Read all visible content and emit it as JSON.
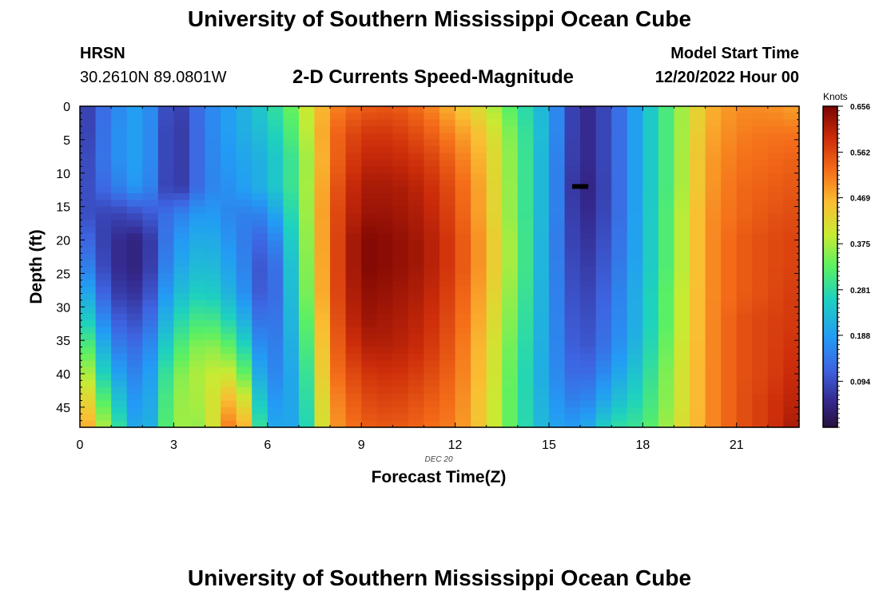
{
  "page": {
    "title": "University of Southern Mississippi Ocean Cube",
    "title_repeat": "University of Southern Mississippi Ocean Cube"
  },
  "station": {
    "code": "HRSN",
    "coords": "30.2610N  89.0801W"
  },
  "model": {
    "label": "Model Start Time",
    "value": "12/20/2022 Hour 00"
  },
  "chart_data": {
    "type": "heatmap",
    "title": "2-D Currents Speed-Magnitude",
    "xlabel": "Forecast Time(Z)",
    "ylabel": "Depth (ft)",
    "date_label": "DEC 20",
    "xlim": [
      0,
      23
    ],
    "ylim": [
      0,
      48
    ],
    "x_ticks": [
      0,
      3,
      6,
      9,
      12,
      15,
      18,
      21
    ],
    "y_ticks": [
      0,
      5,
      10,
      15,
      20,
      25,
      30,
      35,
      40,
      45
    ],
    "hours": [
      0,
      1,
      2,
      3,
      4,
      5,
      6,
      7,
      8,
      9,
      10,
      11,
      12,
      13,
      14,
      15,
      16,
      17,
      18,
      19,
      20,
      21,
      22,
      23
    ],
    "depths": [
      0,
      4,
      8,
      12,
      16,
      20,
      24,
      28,
      32,
      36,
      40,
      44,
      48
    ],
    "units": "Knots",
    "colorbar": {
      "label": "Knots",
      "ticks": [
        0.094,
        0.188,
        0.281,
        0.375,
        0.469,
        0.562,
        0.656
      ],
      "range": [
        0,
        0.656
      ]
    },
    "marker": {
      "hour": 16.0,
      "depth": 12,
      "label": "black marker"
    },
    "notes": "Speed values (knots) estimated from colour; rows = depths, cols = hours 0..23",
    "values": [
      [
        0.06,
        0.15,
        0.2,
        0.06,
        0.15,
        0.2,
        0.26,
        0.36,
        0.5,
        0.54,
        0.55,
        0.52,
        0.46,
        0.4,
        0.3,
        0.2,
        0.04,
        0.1,
        0.22,
        0.34,
        0.46,
        0.5,
        0.5,
        0.48
      ],
      [
        0.06,
        0.16,
        0.2,
        0.05,
        0.15,
        0.2,
        0.24,
        0.34,
        0.52,
        0.58,
        0.58,
        0.55,
        0.5,
        0.44,
        0.32,
        0.2,
        0.04,
        0.1,
        0.22,
        0.34,
        0.47,
        0.51,
        0.52,
        0.52
      ],
      [
        0.07,
        0.16,
        0.2,
        0.05,
        0.15,
        0.19,
        0.22,
        0.32,
        0.52,
        0.6,
        0.6,
        0.58,
        0.53,
        0.45,
        0.33,
        0.19,
        0.04,
        0.1,
        0.22,
        0.34,
        0.48,
        0.52,
        0.53,
        0.54
      ],
      [
        0.08,
        0.14,
        0.19,
        0.05,
        0.15,
        0.18,
        0.22,
        0.32,
        0.53,
        0.62,
        0.62,
        0.6,
        0.55,
        0.46,
        0.33,
        0.19,
        0.03,
        0.1,
        0.22,
        0.34,
        0.48,
        0.53,
        0.54,
        0.55
      ],
      [
        0.1,
        0.08,
        0.1,
        0.14,
        0.19,
        0.15,
        0.16,
        0.31,
        0.54,
        0.63,
        0.63,
        0.61,
        0.56,
        0.46,
        0.33,
        0.19,
        0.04,
        0.1,
        0.22,
        0.35,
        0.49,
        0.53,
        0.55,
        0.56
      ],
      [
        0.14,
        0.06,
        0.04,
        0.17,
        0.22,
        0.16,
        0.11,
        0.3,
        0.54,
        0.65,
        0.64,
        0.62,
        0.57,
        0.47,
        0.34,
        0.18,
        0.05,
        0.11,
        0.22,
        0.35,
        0.49,
        0.54,
        0.56,
        0.57
      ],
      [
        0.18,
        0.06,
        0.04,
        0.19,
        0.24,
        0.18,
        0.08,
        0.29,
        0.54,
        0.65,
        0.64,
        0.62,
        0.57,
        0.47,
        0.34,
        0.18,
        0.06,
        0.12,
        0.22,
        0.35,
        0.49,
        0.54,
        0.56,
        0.57
      ],
      [
        0.24,
        0.08,
        0.06,
        0.22,
        0.27,
        0.2,
        0.08,
        0.28,
        0.54,
        0.64,
        0.63,
        0.61,
        0.56,
        0.46,
        0.33,
        0.18,
        0.07,
        0.13,
        0.23,
        0.36,
        0.49,
        0.54,
        0.56,
        0.58
      ],
      [
        0.3,
        0.12,
        0.09,
        0.26,
        0.32,
        0.25,
        0.1,
        0.26,
        0.53,
        0.63,
        0.62,
        0.6,
        0.55,
        0.45,
        0.32,
        0.18,
        0.08,
        0.14,
        0.23,
        0.36,
        0.49,
        0.55,
        0.57,
        0.58
      ],
      [
        0.37,
        0.16,
        0.12,
        0.3,
        0.37,
        0.32,
        0.12,
        0.24,
        0.52,
        0.61,
        0.61,
        0.59,
        0.54,
        0.44,
        0.31,
        0.18,
        0.09,
        0.15,
        0.24,
        0.37,
        0.49,
        0.55,
        0.57,
        0.59
      ],
      [
        0.43,
        0.21,
        0.14,
        0.34,
        0.39,
        0.4,
        0.14,
        0.22,
        0.51,
        0.58,
        0.59,
        0.57,
        0.53,
        0.44,
        0.3,
        0.18,
        0.11,
        0.18,
        0.26,
        0.38,
        0.49,
        0.55,
        0.57,
        0.6
      ],
      [
        0.48,
        0.27,
        0.15,
        0.36,
        0.38,
        0.49,
        0.17,
        0.21,
        0.49,
        0.56,
        0.57,
        0.55,
        0.52,
        0.43,
        0.3,
        0.19,
        0.14,
        0.22,
        0.28,
        0.38,
        0.49,
        0.55,
        0.58,
        0.61
      ],
      [
        0.52,
        0.33,
        0.16,
        0.37,
        0.36,
        0.56,
        0.2,
        0.2,
        0.48,
        0.54,
        0.55,
        0.53,
        0.51,
        0.43,
        0.3,
        0.2,
        0.18,
        0.28,
        0.3,
        0.39,
        0.49,
        0.55,
        0.58,
        0.63
      ]
    ]
  }
}
